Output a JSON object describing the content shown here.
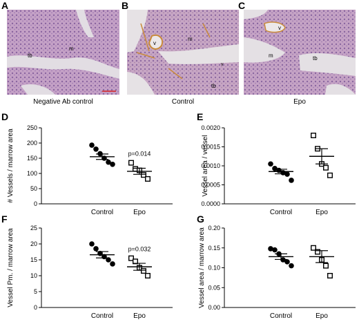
{
  "panels": {
    "A": {
      "letter": "A",
      "caption": "Negative Ab control",
      "labels": [
        "m",
        "tb"
      ]
    },
    "B": {
      "letter": "B",
      "caption": "Control",
      "labels": [
        "v",
        "m",
        "tb",
        "v"
      ]
    },
    "C": {
      "letter": "C",
      "caption": "Epo",
      "labels": [
        "v",
        "m",
        "tb"
      ]
    }
  },
  "colors": {
    "tissue": "#c9a6c8",
    "tissue_dark": "#8f6aa3",
    "background": "#e4e1e4",
    "stain": "#c98a3a",
    "scalebar": "#d0404a"
  },
  "chart_data": [
    {
      "id": "D",
      "letter": "D",
      "type": "scatter",
      "ylabel": "# Vessels / marrow area",
      "categories": [
        "Control",
        "Epo"
      ],
      "ylim": [
        0,
        250
      ],
      "yticks": [
        "0",
        "50",
        "100",
        "150",
        "200",
        "250"
      ],
      "ytick_values": [
        0,
        50,
        100,
        150,
        200,
        250
      ],
      "annotation": "p=0.014",
      "series": [
        {
          "values": [
            193,
            180,
            165,
            150,
            137,
            130
          ],
          "mean": 155,
          "sem": 9
        },
        {
          "values": [
            135,
            115,
            110,
            95,
            82
          ],
          "mean": 107,
          "sem": 10
        }
      ]
    },
    {
      "id": "E",
      "letter": "E",
      "type": "scatter",
      "ylabel": "Vessel area / vessel",
      "categories": [
        "Control",
        "Epo"
      ],
      "ylim": [
        0,
        0.002
      ],
      "yticks": [
        "0.0000",
        "0.0005",
        "0.0010",
        "0.0015",
        "0.0020"
      ],
      "ytick_values": [
        0,
        0.0005,
        0.001,
        0.0015,
        0.002
      ],
      "annotation": "",
      "series": [
        {
          "values": [
            0.00105,
            0.00093,
            0.00088,
            0.00082,
            0.00078,
            0.00062
          ],
          "mean": 0.00085,
          "sem": 6e-05
        },
        {
          "values": [
            0.0018,
            0.00145,
            0.00105,
            0.00095,
            0.00075
          ],
          "mean": 0.00125,
          "sem": 0.0002
        }
      ]
    },
    {
      "id": "F",
      "letter": "F",
      "type": "scatter",
      "ylabel": "Vessel Pm. / marrow area",
      "categories": [
        "Control",
        "Epo"
      ],
      "ylim": [
        0,
        25
      ],
      "yticks": [
        "0",
        "5",
        "10",
        "15",
        "20",
        "25"
      ],
      "ytick_values": [
        0,
        5,
        10,
        15,
        20,
        25
      ],
      "annotation": "p=0.032",
      "series": [
        {
          "values": [
            20,
            18.5,
            17,
            16,
            15,
            13.7
          ],
          "mean": 16.6,
          "sem": 1.0
        },
        {
          "values": [
            15.5,
            14.5,
            12.5,
            11.5,
            10
          ],
          "mean": 12.8,
          "sem": 1.1
        }
      ]
    },
    {
      "id": "G",
      "letter": "G",
      "type": "scatter",
      "ylabel": "Vessel  area / marrow area",
      "categories": [
        "Control",
        "Epo"
      ],
      "ylim": [
        0,
        0.2
      ],
      "yticks": [
        "0.00",
        "0.05",
        "0.10",
        "0.15",
        "0.20"
      ],
      "ytick_values": [
        0,
        0.05,
        0.1,
        0.15,
        0.2
      ],
      "annotation": "",
      "series": [
        {
          "values": [
            0.148,
            0.145,
            0.135,
            0.12,
            0.115,
            0.105
          ],
          "mean": 0.128,
          "sem": 0.007
        },
        {
          "values": [
            0.15,
            0.14,
            0.12,
            0.105,
            0.08
          ],
          "mean": 0.128,
          "sem": 0.015
        }
      ]
    }
  ]
}
